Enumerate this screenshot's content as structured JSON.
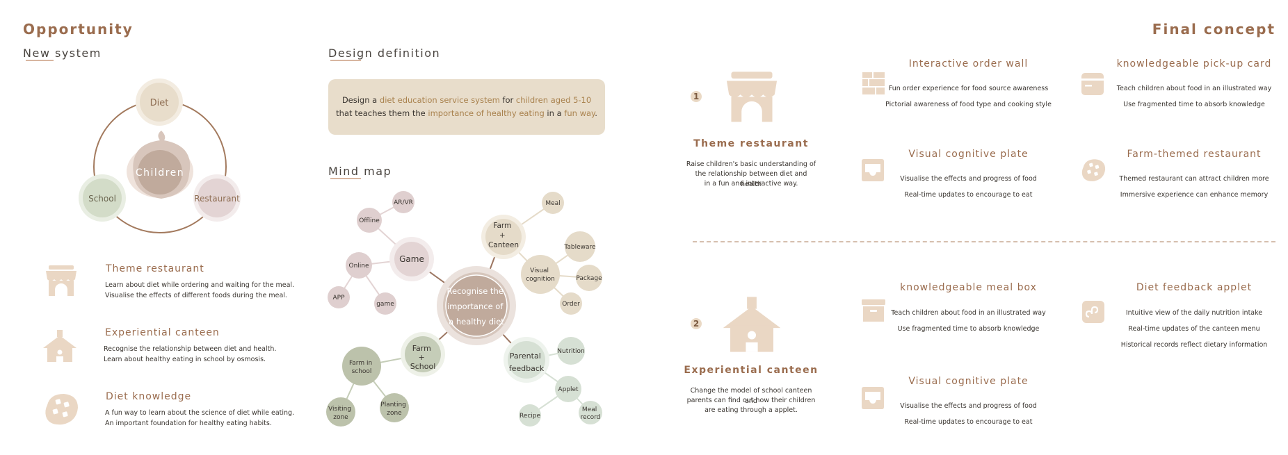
{
  "left": {
    "heading": "Opportunity",
    "subheading": "New system",
    "ring": {
      "center": "Children",
      "nodes": [
        "Diet",
        "School",
        "Restaurant"
      ]
    },
    "features": [
      {
        "title": "Theme restaurant",
        "lines": [
          "Learn about diet while ordering and waiting for the meal.",
          "Visualise the effects of different foods during the meal."
        ],
        "icon": "shop-icon"
      },
      {
        "title": "Experiential canteen",
        "lines": [
          "Recognise the relationship between diet and health.",
          "Learn about healthy eating in school by osmosis."
        ],
        "icon": "house-icon"
      },
      {
        "title": "Diet knowledge",
        "lines": [
          "A fun way to learn about the science of diet while eating.",
          "An important foundation for healthy eating habits."
        ],
        "icon": "cookie-icon"
      }
    ]
  },
  "middle": {
    "design_heading": "Design definition",
    "definition": {
      "p1": "Design a ",
      "h1": "diet education service system",
      "p2": " for ",
      "h2": "children aged 5-10",
      "p3": "that teaches them the ",
      "h3": "importance of healthy eating",
      "p4": " in a ",
      "h4": "fun way",
      "p5": "."
    },
    "mindmap_heading": "Mind map",
    "mindmap": {
      "center": [
        "Recognise the",
        "importance of",
        "a healthy diet"
      ],
      "game": "Game",
      "offline": "Offline",
      "arvr": "AR/VR",
      "online": "Online",
      "app": "APP",
      "game_small": "game",
      "farm_canteen": [
        "Farm",
        "+",
        "Canteen"
      ],
      "meal": "Meal",
      "visual_cognition": [
        "Visual",
        "cognition"
      ],
      "tableware": "Tableware",
      "package": "Package",
      "order": "Order",
      "farm_school": [
        "Farm",
        "+",
        "School"
      ],
      "farm_in_school": [
        "Farm in",
        "school"
      ],
      "visiting_zone": [
        "Visiting",
        "zone"
      ],
      "planting_zone": [
        "Planting",
        "zone"
      ],
      "parental_feedback": [
        "Parental",
        "feedback"
      ],
      "nutrition": "Nutrition",
      "applet": "Applet",
      "recipe": "Recipe",
      "meal_record": [
        "Meal",
        "record"
      ]
    }
  },
  "right": {
    "heading": "Final concept",
    "concepts": [
      {
        "number": "1",
        "title": "Theme restaurant",
        "desc": [
          "Raise children's basic understanding of",
          "the relationship between diet and health",
          "in a fun and interactive way."
        ],
        "items": [
          {
            "title": "Interactive order wall",
            "lines": [
              "Fun order experience for food source awareness",
              "Pictorial awareness of food type and cooking style"
            ],
            "icon": "grid-wall-icon"
          },
          {
            "title": "knowledgeable pick-up card",
            "lines": [
              "Teach children about food in an illustrated way",
              "Use fragmented time to absorb knowledge"
            ],
            "icon": "card-icon"
          },
          {
            "title": "Visual cognitive plate",
            "lines": [
              "Visualise the effects and progress of food",
              "Real-time updates to encourage to eat"
            ],
            "icon": "tray-icon"
          },
          {
            "title": "Farm-themed restaurant",
            "lines": [
              "Themed restaurant can attract children more",
              "Immersive experience can enhance memory"
            ],
            "icon": "cookie-icon"
          }
        ]
      },
      {
        "number": "2",
        "title": "Experiential canteen",
        "desc": [
          "Change the model of school canteen and",
          "parents can find out how their children",
          "are eating through a applet."
        ],
        "items": [
          {
            "title": "knowledgeable meal box",
            "lines": [
              "Teach children about food in an illustrated way",
              "Use fragmented time to absorb knowledge"
            ],
            "icon": "box-icon"
          },
          {
            "title": "Diet feedback applet",
            "lines": [
              "Intuitive view of the daily nutrition intake",
              "Real-time updates of the canteen menu",
              "Historical records reflect dietary information"
            ],
            "icon": "applet-icon"
          },
          {
            "title": "Visual cognitive plate",
            "lines": [
              "Visualise the effects and progress of food",
              "Real-time updates to encourage to eat"
            ],
            "icon": "tray-icon"
          }
        ]
      }
    ]
  }
}
